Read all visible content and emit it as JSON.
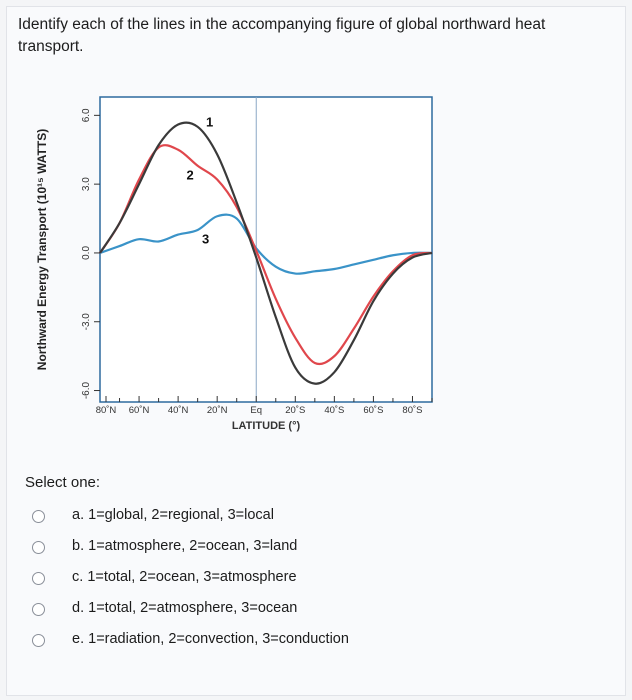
{
  "question": {
    "text": "Identify each of the lines in the accompanying figure of global northward heat transport."
  },
  "chart_data": {
    "type": "line",
    "ylabel": "Northward Energy Transport (10¹⁵ WATTS)",
    "xlabel": "LATITUDE (°)",
    "y_ticks": [
      "6.0",
      "3.0",
      "0.0",
      "-3.0",
      "-6.0"
    ],
    "x_ticks": [
      "80˚N",
      "60˚N",
      "40˚N",
      "20˚N",
      "Eq",
      "20˚S",
      "40˚S",
      "60˚S",
      "80˚S"
    ],
    "ylim": [
      -6.5,
      6.8
    ],
    "x": [
      80,
      70,
      60,
      50,
      40,
      30,
      20,
      10,
      0,
      -10,
      -20,
      -30,
      -40,
      -50,
      -60,
      -70,
      -80,
      -90
    ],
    "series": [
      {
        "name": "1",
        "color": "#3a3a3a",
        "values": [
          0.0,
          1.3,
          3.0,
          4.7,
          5.6,
          5.5,
          4.3,
          2.2,
          -0.2,
          -2.8,
          -5.0,
          -5.7,
          -5.2,
          -3.8,
          -2.1,
          -0.9,
          -0.2,
          0.0
        ]
      },
      {
        "name": "2",
        "color": "#e0474c",
        "values": [
          0.0,
          1.3,
          3.2,
          4.6,
          4.5,
          3.8,
          3.2,
          2.0,
          0.1,
          -2.0,
          -3.7,
          -4.8,
          -4.5,
          -3.3,
          -1.9,
          -0.8,
          -0.1,
          0.0
        ]
      },
      {
        "name": "3",
        "color": "#3a93c8",
        "values": [
          0.0,
          0.3,
          0.6,
          0.5,
          0.8,
          1.0,
          1.6,
          1.5,
          0.2,
          -0.6,
          -0.9,
          -0.8,
          -0.7,
          -0.5,
          -0.3,
          -0.1,
          0.0,
          0.0
        ]
      }
    ],
    "grid": false
  },
  "select_one_label": "Select one:",
  "options": [
    {
      "letter": "a.",
      "text": "1=global, 2=regional, 3=local"
    },
    {
      "letter": "b.",
      "text": "1=atmosphere, 2=ocean, 3=land"
    },
    {
      "letter": "c.",
      "text": "1=total, 2=ocean, 3=atmosphere"
    },
    {
      "letter": "d.",
      "text": "1=total, 2=atmosphere, 3=ocean"
    },
    {
      "letter": "e.",
      "text": "1=radiation, 2=convection, 3=conduction"
    }
  ],
  "colors": {
    "plot_border": "#2e6a9e",
    "axis": "#333333"
  }
}
